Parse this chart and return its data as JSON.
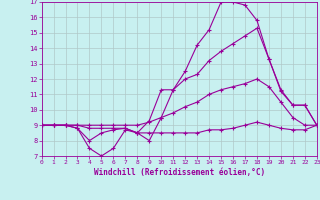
{
  "xlabel": "Windchill (Refroidissement éolien,°C)",
  "bg_color": "#c8f0f0",
  "line_color": "#990099",
  "grid_color": "#b0c8c8",
  "xmin": 0,
  "xmax": 23,
  "ymin": 7,
  "ymax": 17,
  "series1_x": [
    0,
    1,
    2,
    3,
    4,
    5,
    6,
    7,
    8,
    9,
    10,
    11,
    12,
    13,
    14,
    15,
    16,
    17,
    18,
    19,
    20,
    21,
    22,
    23
  ],
  "series1_y": [
    9,
    9,
    9,
    8.8,
    7.5,
    7.0,
    7.5,
    8.7,
    8.5,
    8.0,
    9.5,
    11.3,
    12.5,
    14.2,
    15.2,
    17.0,
    17.0,
    16.8,
    15.8,
    13.3,
    11.3,
    10.3,
    10.3,
    9.0
  ],
  "series2_x": [
    0,
    1,
    2,
    3,
    4,
    5,
    6,
    7,
    8,
    9,
    10,
    11,
    12,
    13,
    14,
    15,
    16,
    17,
    18,
    19,
    20,
    21,
    22,
    23
  ],
  "series2_y": [
    9,
    9,
    9,
    8.8,
    8.0,
    8.5,
    8.7,
    8.8,
    8.5,
    9.3,
    11.3,
    11.3,
    12.0,
    12.3,
    13.2,
    13.8,
    14.3,
    14.8,
    15.3,
    13.3,
    11.2,
    10.3,
    10.3,
    9.0
  ],
  "series3_x": [
    0,
    1,
    2,
    3,
    4,
    5,
    6,
    7,
    8,
    9,
    10,
    11,
    12,
    13,
    14,
    15,
    16,
    17,
    18,
    19,
    20,
    21,
    22,
    23
  ],
  "series3_y": [
    9,
    9,
    9,
    9,
    9.0,
    9.0,
    9.0,
    9.0,
    9.0,
    9.2,
    9.5,
    9.8,
    10.2,
    10.5,
    11.0,
    11.3,
    11.5,
    11.7,
    12.0,
    11.5,
    10.5,
    9.5,
    9.0,
    9.0
  ],
  "series4_x": [
    0,
    1,
    2,
    3,
    4,
    5,
    6,
    7,
    8,
    9,
    10,
    11,
    12,
    13,
    14,
    15,
    16,
    17,
    18,
    19,
    20,
    21,
    22,
    23
  ],
  "series4_y": [
    9,
    9,
    9,
    9,
    8.8,
    8.8,
    8.8,
    8.8,
    8.5,
    8.5,
    8.5,
    8.5,
    8.5,
    8.5,
    8.7,
    8.7,
    8.8,
    9.0,
    9.2,
    9.0,
    8.8,
    8.7,
    8.7,
    9.0
  ]
}
